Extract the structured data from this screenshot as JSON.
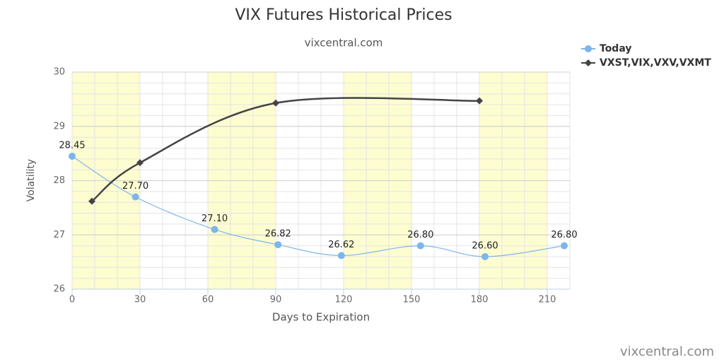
{
  "chart_data": {
    "type": "line",
    "title": "VIX Futures Historical Prices",
    "subtitle": "vixcentral.com",
    "watermark": "vixcentral.com",
    "x_label": "Days to Expiration",
    "y_label": "Volatility",
    "xlim": [
      0,
      220
    ],
    "xticks": [
      0,
      30,
      60,
      90,
      120,
      150,
      180,
      210
    ],
    "ylim": [
      26,
      30
    ],
    "yticks": [
      26,
      27,
      28,
      29,
      30
    ],
    "x_minor_step": 10,
    "y_minor_step": 0.2,
    "plot_bands": [
      [
        0,
        30
      ],
      [
        60,
        90
      ],
      [
        120,
        150
      ],
      [
        180,
        210
      ]
    ],
    "band_color": "#fdfdd0",
    "grid": true,
    "smooth": true,
    "legend": "top-right",
    "series": [
      {
        "name": "Today",
        "color": "#7cb5ec",
        "marker": "circle",
        "x": [
          0,
          28,
          63,
          91,
          119,
          154,
          182.5,
          217.5
        ],
        "values": [
          28.45,
          27.7,
          27.1,
          26.82,
          26.62,
          26.8,
          26.6,
          26.8
        ],
        "value_labels": [
          "28.45",
          "27.70",
          "27.10",
          "26.82",
          "26.62",
          "26.80",
          "26.60",
          "26.80"
        ]
      },
      {
        "name": "VXST,VIX,VXV,VXMT",
        "color": "#434348",
        "marker": "diamond",
        "x": [
          8.75,
          30,
          90,
          180
        ],
        "values": [
          27.62,
          28.33,
          29.43,
          29.47
        ]
      }
    ]
  }
}
